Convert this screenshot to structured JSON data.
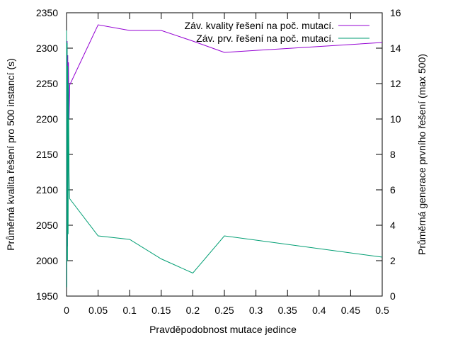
{
  "chart_data": {
    "type": "line",
    "xlabel": "Pravděpodobnost mutace jedince",
    "ylabel": "Průměrná kvalita řešení pro 500 instancí (s)",
    "y2label": "Průměrná generace prvního řešení (max 500)",
    "xlim": [
      0,
      0.5
    ],
    "ylim": [
      1950,
      2350
    ],
    "y2lim": [
      0,
      16
    ],
    "x_ticks": [
      "0",
      "0.05",
      "0.1",
      "0.15",
      "0.2",
      "0.25",
      "0.3",
      "0.35",
      "0.4",
      "0.45",
      "0.5"
    ],
    "y_ticks": [
      "1950",
      "2000",
      "2050",
      "2100",
      "2150",
      "2200",
      "2250",
      "2300",
      "2350"
    ],
    "y2_ticks": [
      "0",
      "2",
      "4",
      "6",
      "8",
      "10",
      "12",
      "14",
      "16"
    ],
    "grid": false,
    "legend_position": "top-right",
    "series": [
      {
        "name": "Záv. kvality řešení na poč. mutací.",
        "axis": "y",
        "color": "#9400d3",
        "x": [
          0,
          0.0005,
          0.001,
          0.0015,
          0.002,
          0.0025,
          0.003,
          0.004,
          0.005,
          0.05,
          0.1,
          0.15,
          0.2,
          0.25,
          0.5
        ],
        "values": [
          2322,
          1965,
          2310,
          2020,
          2290,
          2100,
          2280,
          2200,
          2248,
          2333,
          2325,
          2325,
          2310,
          2294,
          2308
        ]
      },
      {
        "name": "Záv. prv. řešení na poč. mutací.",
        "axis": "y2",
        "color": "#009e73",
        "x": [
          0,
          0.0005,
          0.001,
          0.0015,
          0.002,
          0.0025,
          0.003,
          0.004,
          0.005,
          0.05,
          0.1,
          0.15,
          0.2,
          0.25,
          0.5
        ],
        "values": [
          15.0,
          0.5,
          14.3,
          2.0,
          13.0,
          3.5,
          12.0,
          7.0,
          5.5,
          3.4,
          3.2,
          2.1,
          1.3,
          3.4,
          2.2
        ]
      }
    ]
  }
}
